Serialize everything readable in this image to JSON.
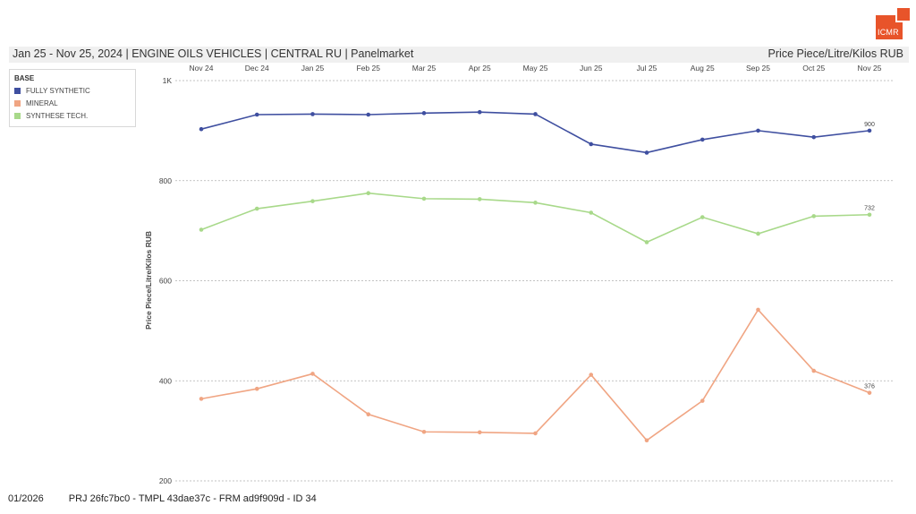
{
  "logo": {
    "text": "ICMR"
  },
  "header": {
    "left": "Jan 25 - Nov 25, 2024 | ENGINE OILS VEHICLES | CENTRAL RU | Panelmarket",
    "right": "Price Piece/Litre/Kilos RUB"
  },
  "footer": {
    "date": "01/2026",
    "ids": "PRJ 26fc7bc0 - TMPL 43dae37c - FRM ad9f909d - ID 34"
  },
  "legend": {
    "title": "BASE",
    "items": [
      {
        "label": "FULLY SYNTHETIC",
        "color": "#3f4fa0"
      },
      {
        "label": "MINERAL",
        "color": "#f0a583"
      },
      {
        "label": "SYNTHESE TECH.",
        "color": "#a8d98a"
      }
    ]
  },
  "chart_data": {
    "type": "line",
    "categories": [
      "Nov 24",
      "Dec 24",
      "Jan 25",
      "Feb 25",
      "Mar 25",
      "Apr 25",
      "May 25",
      "Jun 25",
      "Jul 25",
      "Aug 25",
      "Sep 25",
      "Oct 25",
      "Nov 25"
    ],
    "ylabel": "Price Piece/Litre/Kilos RUB",
    "ylim": [
      200,
      1000
    ],
    "yticks": [
      {
        "value": 200,
        "label": "200"
      },
      {
        "value": 400,
        "label": "400"
      },
      {
        "value": 600,
        "label": "600"
      },
      {
        "value": 800,
        "label": "800"
      },
      {
        "value": 1000,
        "label": "1K"
      }
    ],
    "grid": true,
    "x_axis_position": "top",
    "series": [
      {
        "name": "FULLY SYNTHETIC",
        "color": "#3f4fa0",
        "values": [
          903,
          932,
          933,
          932,
          935,
          937,
          933,
          873,
          856,
          882,
          900,
          887,
          900
        ],
        "end_label": "900"
      },
      {
        "name": "MINERAL",
        "color": "#f0a583",
        "values": [
          364,
          384,
          414,
          333,
          298,
          297,
          295,
          412,
          281,
          360,
          542,
          420,
          376
        ],
        "end_label": "376"
      },
      {
        "name": "SYNTHESE TECH.",
        "color": "#a8d98a",
        "values": [
          702,
          744,
          759,
          775,
          764,
          763,
          756,
          736,
          677,
          727,
          694,
          729,
          732
        ],
        "end_label": "732"
      }
    ]
  }
}
